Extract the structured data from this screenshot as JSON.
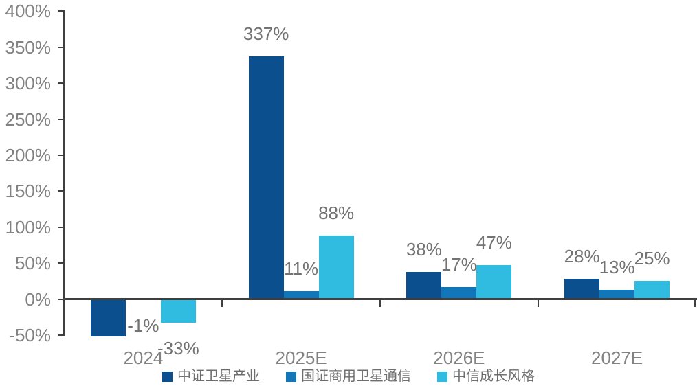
{
  "chart_data": {
    "type": "bar",
    "title": "",
    "categories": [
      "2024",
      "2025E",
      "2026E",
      "2027E"
    ],
    "series": [
      {
        "name": "中证卫星产业",
        "color": "#0B4F8F",
        "values": [
          -52,
          337,
          38,
          28
        ],
        "labels": [
          null,
          "337%",
          "38%",
          "28%"
        ]
      },
      {
        "name": "国证商用卫星通信",
        "color": "#1277B8",
        "values": [
          -1,
          11,
          17,
          13
        ],
        "labels": [
          "-1%",
          "11%",
          "17%",
          "13%"
        ]
      },
      {
        "name": "中信成长风格",
        "color": "#2FBCE0",
        "values": [
          -33,
          88,
          47,
          25
        ],
        "labels": [
          "-33%",
          "88%",
          "47%",
          "25%"
        ]
      }
    ],
    "y_axis": {
      "min": -50,
      "max": 400,
      "step": 50,
      "tick_labels": [
        "400%",
        "350%",
        "300%",
        "250%",
        "200%",
        "150%",
        "100%",
        "50%",
        "0%",
        "-50%"
      ],
      "format": "percent"
    },
    "xlabel": "",
    "ylabel": "",
    "grid": false,
    "legend_position": "bottom",
    "colors": {
      "axis_line": "#3F3F3F",
      "axis_tick_text": "#828282",
      "data_label_text": "#737373",
      "category_text": "#828282",
      "legend_text": "#6E6E6E",
      "background": "#FFFFFF"
    }
  }
}
